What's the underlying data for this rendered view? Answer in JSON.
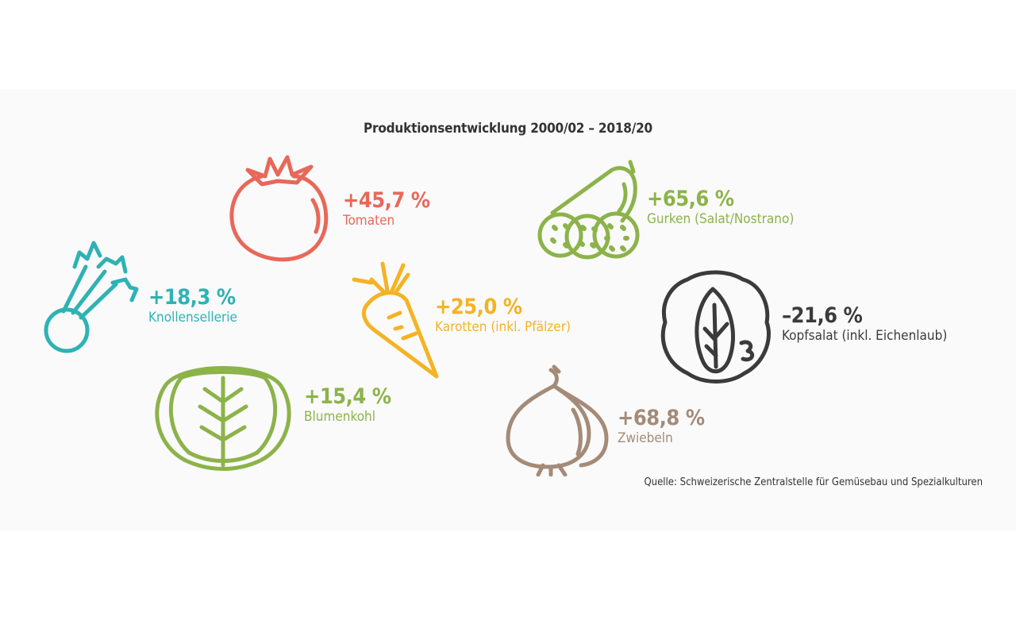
{
  "title": "Produktionsentwicklung 2000/02 – 2018/20",
  "items": [
    {
      "value": "+45,7 %",
      "label": "Tomaten",
      "icon": "tomato-icon",
      "color": "#e8685a"
    },
    {
      "value": "+65,6 %",
      "label": "Gurken (Salat/Nostrano)",
      "icon": "cucumber-icon",
      "color": "#8cb34a"
    },
    {
      "value": "+18,3 %",
      "label": "Knollensellerie",
      "icon": "celery-icon",
      "color": "#2fb2b4"
    },
    {
      "value": "+25,0 %",
      "label": "Karotten (inkl. Pfälzer)",
      "icon": "carrot-icon",
      "color": "#f4b324"
    },
    {
      "value": "–21,6 %",
      "label": "Kopfsalat (inkl. Eichenlaub)",
      "icon": "lettuce-icon",
      "color": "#3b3b3b"
    },
    {
      "value": "+15,4 %",
      "label": "Blumenkohl",
      "icon": "cabbage-icon",
      "color": "#8cb34a"
    },
    {
      "value": "+68,8 %",
      "label": "Zwiebeln",
      "icon": "onion-icon",
      "color": "#a48b78"
    }
  ],
  "source": "Quelle: Schweizerische Zentralstelle für Gemüsebau und Spezialkulturen"
}
